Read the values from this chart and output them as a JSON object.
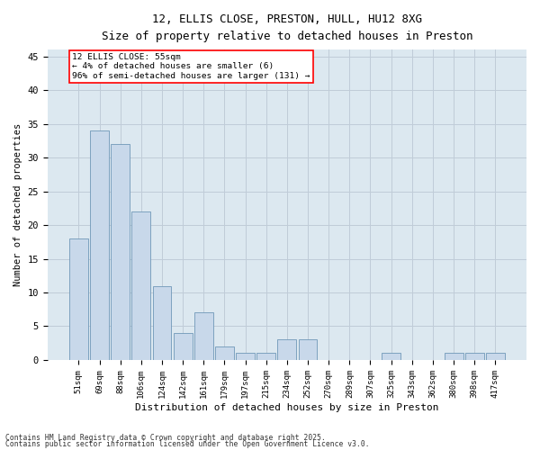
{
  "title_line1": "12, ELLIS CLOSE, PRESTON, HULL, HU12 8XG",
  "title_line2": "Size of property relative to detached houses in Preston",
  "xlabel": "Distribution of detached houses by size in Preston",
  "ylabel": "Number of detached properties",
  "bar_labels": [
    "51sqm",
    "69sqm",
    "88sqm",
    "106sqm",
    "124sqm",
    "142sqm",
    "161sqm",
    "179sqm",
    "197sqm",
    "215sqm",
    "234sqm",
    "252sqm",
    "270sqm",
    "289sqm",
    "307sqm",
    "325sqm",
    "343sqm",
    "362sqm",
    "380sqm",
    "398sqm",
    "417sqm"
  ],
  "bar_values": [
    18,
    34,
    32,
    22,
    11,
    4,
    7,
    2,
    1,
    1,
    3,
    3,
    0,
    0,
    0,
    1,
    0,
    0,
    1,
    1,
    1
  ],
  "bar_color": "#c8d8ea",
  "bar_edgecolor": "#7098b8",
  "annotation_box_text": "12 ELLIS CLOSE: 55sqm\n← 4% of detached houses are smaller (6)\n96% of semi-detached houses are larger (131) →",
  "ylim": [
    0,
    46
  ],
  "yticks": [
    0,
    5,
    10,
    15,
    20,
    25,
    30,
    35,
    40,
    45
  ],
  "grid_color": "#c0ccd8",
  "plot_bg_color": "#dce8f0",
  "footer_line1": "Contains HM Land Registry data © Crown copyright and database right 2025.",
  "footer_line2": "Contains public sector information licensed under the Open Government Licence v3.0."
}
